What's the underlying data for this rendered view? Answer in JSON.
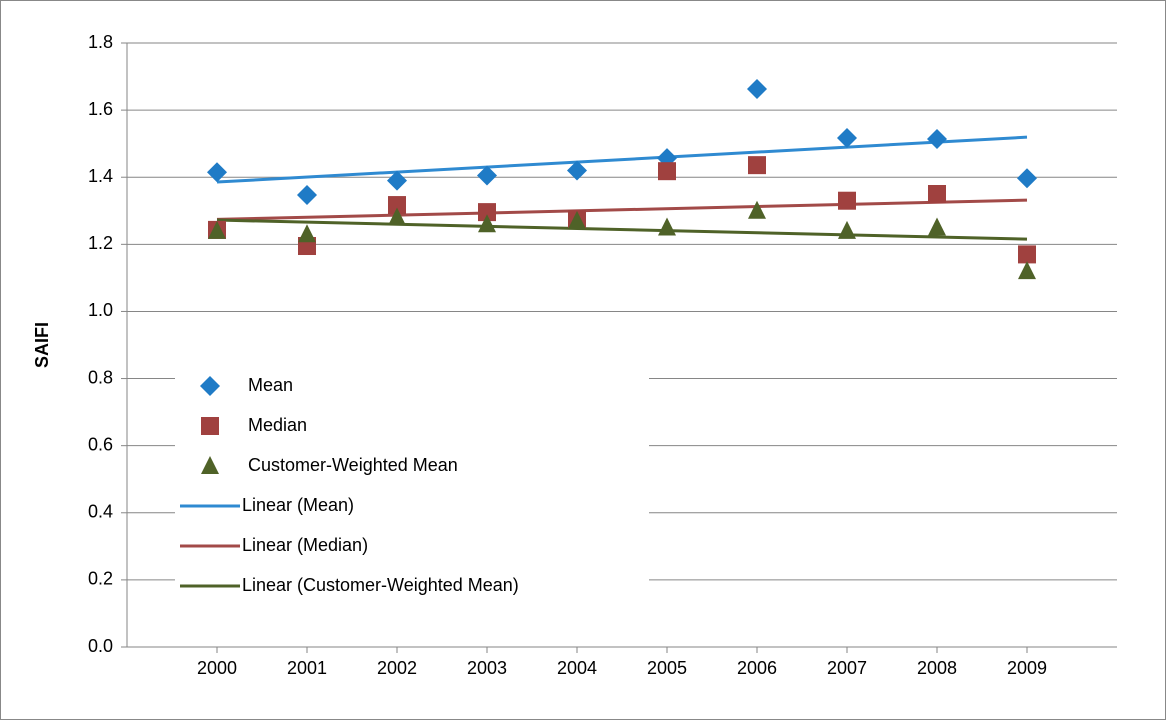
{
  "chart_data": {
    "type": "scatter",
    "y_label": "SAIFI",
    "x": [
      2000,
      2001,
      2002,
      2003,
      2004,
      2005,
      2006,
      2007,
      2008,
      2009
    ],
    "xlim": [
      1999,
      2010
    ],
    "xticks": [
      2000,
      2001,
      2002,
      2003,
      2004,
      2005,
      2006,
      2007,
      2008,
      2009
    ],
    "ylim": [
      0,
      1.8
    ],
    "yticks": [
      {
        "value": 0,
        "label": "0.0"
      },
      0.2,
      0.4,
      0.6,
      0.8,
      {
        "value": 1,
        "label": "1.0"
      },
      1.2,
      1.4,
      1.6,
      1.8
    ],
    "grid": true,
    "legend": "left",
    "series": [
      {
        "name": "Mean",
        "color": "#1f7bc6",
        "marker": "diamond",
        "values": [
          1.415,
          1.347,
          1.39,
          1.405,
          1.42,
          1.457,
          1.663,
          1.517,
          1.514,
          1.397
        ],
        "trendline": {
          "name": "Linear (Mean)",
          "color": "#2f8ad1"
        }
      },
      {
        "name": "Median",
        "color": "#a0413f",
        "marker": "square",
        "values": [
          1.243,
          1.195,
          1.317,
          1.296,
          1.275,
          1.418,
          1.436,
          1.33,
          1.35,
          1.17
        ],
        "trendline": {
          "name": "Linear (Median)",
          "color": "#a24a48"
        }
      },
      {
        "name": "Customer-Weighted Mean",
        "color": "#4f6228",
        "marker": "triangle",
        "values": [
          1.24,
          1.23,
          1.28,
          1.26,
          1.27,
          1.25,
          1.3,
          1.24,
          1.25,
          1.12
        ],
        "trendline": {
          "name": "Linear (Customer-Weighted Mean)",
          "color": "#4f6228"
        }
      }
    ]
  }
}
